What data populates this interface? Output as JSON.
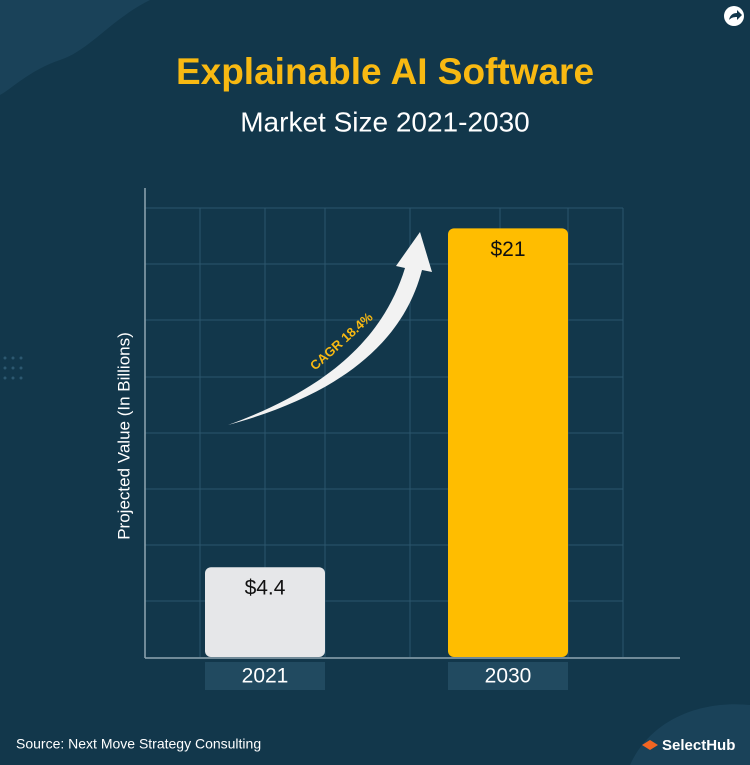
{
  "chart_data": {
    "type": "bar",
    "title": "Explainable AI Software",
    "subtitle": "Market Size 2021-2030",
    "y_label": "Projected Value (In Billions)",
    "annotation": "CAGR 18.4%",
    "categories": [
      "2021",
      "2030"
    ],
    "values": [
      4.4,
      21
    ],
    "value_labels": [
      "$4.4",
      "$21"
    ],
    "colors": [
      "#e6e7e9",
      "#ffbd00"
    ],
    "ylim": [
      0,
      22
    ],
    "source": "Source: Next Move Strategy Consulting",
    "brand": "SelectHub"
  }
}
